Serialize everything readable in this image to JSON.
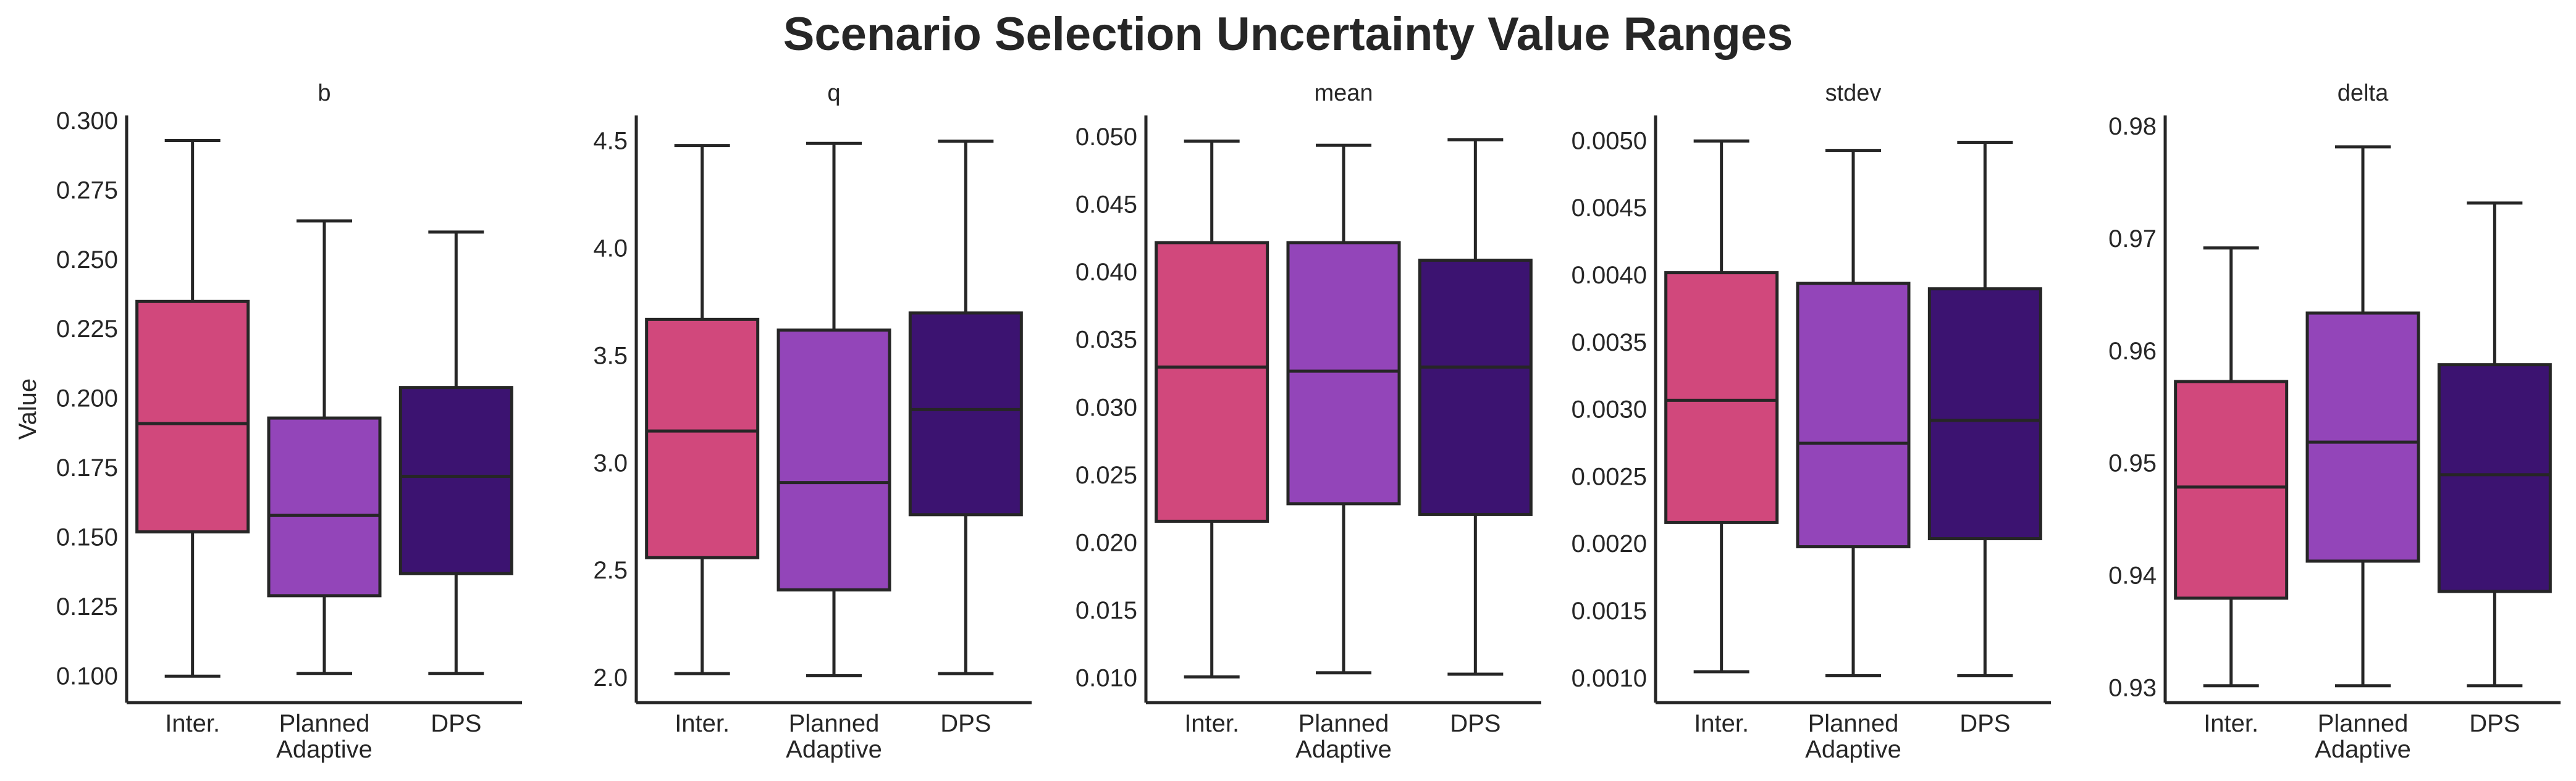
{
  "title": "Scenario Selection Uncertainty Value Ranges",
  "colors": {
    "Inter.": "#d1487c",
    "Planned Adaptive": "#9345b9",
    "DPS": "#3c1371",
    "line": "#262626"
  },
  "chart_data": [
    {
      "type": "box",
      "title": "b",
      "ylabel": "Value",
      "categories": [
        "Inter.",
        "Planned\nAdaptive",
        "DPS"
      ],
      "series": [
        {
          "name": "Inter.",
          "whislo": 0.1,
          "q1": 0.152,
          "med": 0.191,
          "q3": 0.235,
          "whishi": 0.293
        },
        {
          "name": "Planned Adaptive",
          "whislo": 0.101,
          "q1": 0.129,
          "med": 0.158,
          "q3": 0.193,
          "whishi": 0.264
        },
        {
          "name": "DPS",
          "whislo": 0.101,
          "q1": 0.137,
          "med": 0.172,
          "q3": 0.204,
          "whishi": 0.26
        }
      ],
      "ylim": [
        0.0905,
        0.302
      ],
      "yticks": [
        0.1,
        0.125,
        0.15,
        0.175,
        0.2,
        0.225,
        0.25,
        0.275,
        0.3
      ],
      "ytick_labels": [
        "0.100",
        "0.125",
        "0.150",
        "0.175",
        "0.200",
        "0.225",
        "0.250",
        "0.275",
        "0.300"
      ]
    },
    {
      "type": "box",
      "title": "q",
      "ylabel": "",
      "categories": [
        "Inter.",
        "Planned\nAdaptive",
        "DPS"
      ],
      "series": [
        {
          "name": "Inter.",
          "whislo": 2.02,
          "q1": 2.56,
          "med": 3.15,
          "q3": 3.67,
          "whishi": 4.48
        },
        {
          "name": "Planned Adaptive",
          "whislo": 2.01,
          "q1": 2.41,
          "med": 2.91,
          "q3": 3.62,
          "whishi": 4.49
        },
        {
          "name": "DPS",
          "whislo": 2.02,
          "q1": 2.76,
          "med": 3.25,
          "q3": 3.7,
          "whishi": 4.5
        }
      ],
      "ylim": [
        1.885,
        4.62
      ],
      "yticks": [
        2.0,
        2.5,
        3.0,
        3.5,
        4.0,
        4.5
      ],
      "ytick_labels": [
        "2.0",
        "2.5",
        "3.0",
        "3.5",
        "4.0",
        "4.5"
      ]
    },
    {
      "type": "box",
      "title": "mean",
      "ylabel": "",
      "categories": [
        "Inter.",
        "Planned\nAdaptive",
        "DPS"
      ],
      "series": [
        {
          "name": "Inter.",
          "whislo": 0.0101,
          "q1": 0.0216,
          "med": 0.033,
          "q3": 0.0422,
          "whishi": 0.0497
        },
        {
          "name": "Planned Adaptive",
          "whislo": 0.0104,
          "q1": 0.0229,
          "med": 0.0327,
          "q3": 0.0422,
          "whishi": 0.0494
        },
        {
          "name": "DPS",
          "whislo": 0.0103,
          "q1": 0.0221,
          "med": 0.033,
          "q3": 0.0409,
          "whishi": 0.0498
        }
      ],
      "ylim": [
        0.0082,
        0.0516
      ],
      "yticks": [
        0.01,
        0.015,
        0.02,
        0.025,
        0.03,
        0.035,
        0.04,
        0.045,
        0.05
      ],
      "ytick_labels": [
        "0.010",
        "0.015",
        "0.020",
        "0.025",
        "0.030",
        "0.035",
        "0.040",
        "0.045",
        "0.050"
      ]
    },
    {
      "type": "box",
      "title": "stdev",
      "ylabel": "",
      "categories": [
        "Inter.",
        "Planned\nAdaptive",
        "DPS"
      ],
      "series": [
        {
          "name": "Inter.",
          "whislo": 0.00105,
          "q1": 0.00216,
          "med": 0.00307,
          "q3": 0.00402,
          "whishi": 0.005
        },
        {
          "name": "Planned Adaptive",
          "whislo": 0.00102,
          "q1": 0.00198,
          "med": 0.00275,
          "q3": 0.00394,
          "whishi": 0.00493
        },
        {
          "name": "DPS",
          "whislo": 0.00102,
          "q1": 0.00204,
          "med": 0.00292,
          "q3": 0.0039,
          "whishi": 0.00499
        }
      ],
      "ylim": [
        0.00082,
        0.00519
      ],
      "yticks": [
        0.001,
        0.0015,
        0.002,
        0.0025,
        0.003,
        0.0035,
        0.004,
        0.0045,
        0.005
      ],
      "ytick_labels": [
        "0.0010",
        "0.0015",
        "0.0020",
        "0.0025",
        "0.0030",
        "0.0035",
        "0.0040",
        "0.0045",
        "0.0050"
      ]
    },
    {
      "type": "box",
      "title": "delta",
      "ylabel": "",
      "categories": [
        "Inter.",
        "Planned\nAdaptive",
        "DPS"
      ],
      "series": [
        {
          "name": "Inter.",
          "whislo": 0.9302,
          "q1": 0.938,
          "med": 0.9479,
          "q3": 0.9573,
          "whishi": 0.9692
        },
        {
          "name": "Planned Adaptive",
          "whislo": 0.9302,
          "q1": 0.9413,
          "med": 0.9519,
          "q3": 0.9634,
          "whishi": 0.9782
        },
        {
          "name": "DPS",
          "whislo": 0.9302,
          "q1": 0.9386,
          "med": 0.949,
          "q3": 0.9588,
          "whishi": 0.9732
        }
      ],
      "ylim": [
        0.9287,
        0.981
      ],
      "yticks": [
        0.93,
        0.94,
        0.95,
        0.96,
        0.97,
        0.98
      ],
      "ytick_labels": [
        "0.93",
        "0.94",
        "0.95",
        "0.96",
        "0.97",
        "0.98"
      ]
    }
  ]
}
